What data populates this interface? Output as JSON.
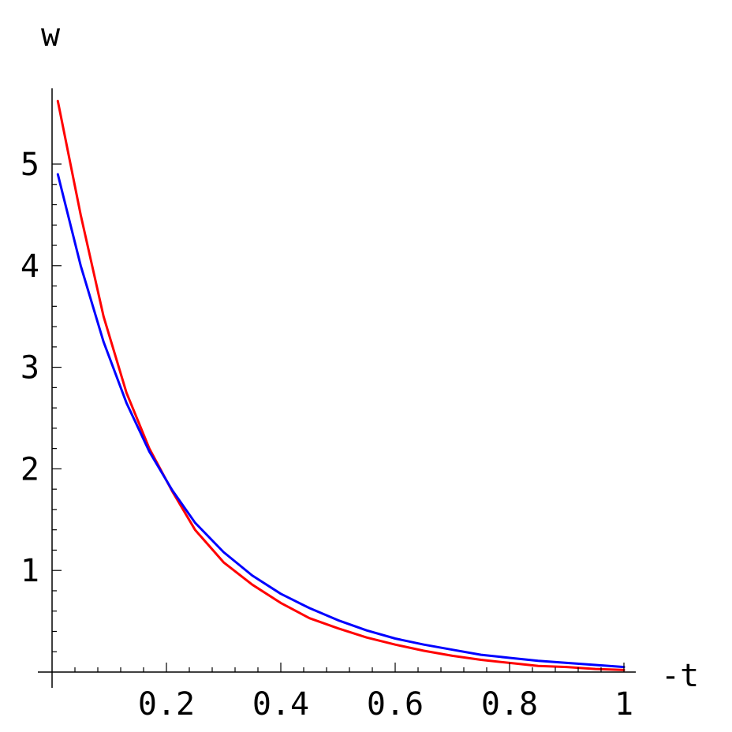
{
  "chart_data": {
    "type": "line",
    "title": "",
    "xlabel": "-t",
    "ylabel": "w",
    "xlim": [
      0,
      1.03
    ],
    "ylim": [
      0,
      5.7
    ],
    "x_ticks": [
      {
        "value": 0.2,
        "label": "0.2"
      },
      {
        "value": 0.4,
        "label": "0.4"
      },
      {
        "value": 0.6,
        "label": "0.6"
      },
      {
        "value": 0.8,
        "label": "0.8"
      },
      {
        "value": 1.0,
        "label": "1"
      }
    ],
    "y_ticks": [
      {
        "value": 1,
        "label": "1"
      },
      {
        "value": 2,
        "label": "2"
      },
      {
        "value": 3,
        "label": "3"
      },
      {
        "value": 4,
        "label": "4"
      },
      {
        "value": 5,
        "label": "5"
      }
    ],
    "grid": false,
    "series": [
      {
        "color": "#ff0000",
        "x": [
          0.01,
          0.05,
          0.09,
          0.13,
          0.17,
          0.21,
          0.25,
          0.3,
          0.35,
          0.4,
          0.45,
          0.5,
          0.55,
          0.6,
          0.65,
          0.7,
          0.75,
          0.8,
          0.85,
          0.9,
          0.95,
          1.0
        ],
        "y": [
          5.62,
          4.5,
          3.5,
          2.75,
          2.2,
          1.78,
          1.4,
          1.08,
          0.86,
          0.68,
          0.53,
          0.43,
          0.34,
          0.27,
          0.21,
          0.16,
          0.12,
          0.09,
          0.06,
          0.05,
          0.03,
          0.02
        ]
      },
      {
        "color": "#0000ff",
        "x": [
          0.01,
          0.05,
          0.09,
          0.13,
          0.17,
          0.21,
          0.25,
          0.3,
          0.35,
          0.4,
          0.45,
          0.5,
          0.55,
          0.6,
          0.65,
          0.7,
          0.75,
          0.8,
          0.85,
          0.9,
          0.95,
          1.0
        ],
        "y": [
          4.9,
          4.0,
          3.25,
          2.65,
          2.17,
          1.79,
          1.47,
          1.18,
          0.95,
          0.77,
          0.63,
          0.51,
          0.41,
          0.33,
          0.27,
          0.22,
          0.17,
          0.14,
          0.11,
          0.09,
          0.07,
          0.05
        ]
      }
    ]
  }
}
